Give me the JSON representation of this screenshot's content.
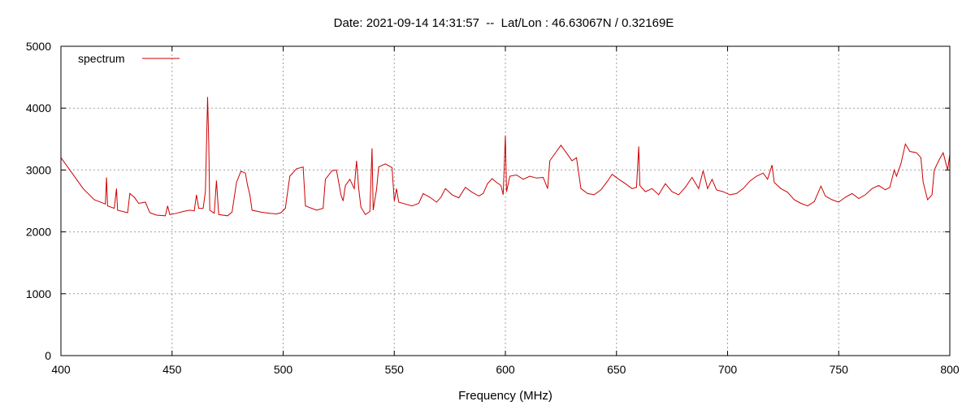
{
  "chart_data": {
    "type": "line",
    "title": "Date: 2021-09-14 14:31:57  --  Lat/Lon : 46.63067N / 0.32169E",
    "xlabel": "Frequency (MHz)",
    "ylabel": "",
    "xlim": [
      400,
      800
    ],
    "ylim": [
      0,
      5000
    ],
    "x_ticks": [
      400,
      450,
      500,
      550,
      600,
      650,
      700,
      750,
      800
    ],
    "y_ticks": [
      0,
      1000,
      2000,
      3000,
      4000,
      5000
    ],
    "grid": true,
    "legend": "top-left",
    "series": [
      {
        "name": "spectrum",
        "color": "#cc0000",
        "points": [
          [
            400,
            3200
          ],
          [
            405,
            2950
          ],
          [
            410,
            2700
          ],
          [
            415,
            2520
          ],
          [
            420,
            2450
          ],
          [
            420.5,
            2880
          ],
          [
            421,
            2420
          ],
          [
            424,
            2380
          ],
          [
            425,
            2700
          ],
          [
            425.5,
            2350
          ],
          [
            430,
            2310
          ],
          [
            431,
            2620
          ],
          [
            433,
            2560
          ],
          [
            435,
            2460
          ],
          [
            438,
            2480
          ],
          [
            440,
            2310
          ],
          [
            443,
            2270
          ],
          [
            447,
            2260
          ],
          [
            448,
            2420
          ],
          [
            449,
            2280
          ],
          [
            452,
            2300
          ],
          [
            455,
            2330
          ],
          [
            458,
            2350
          ],
          [
            460,
            2340
          ],
          [
            461,
            2600
          ],
          [
            462,
            2380
          ],
          [
            464,
            2380
          ],
          [
            465,
            2650
          ],
          [
            466,
            4180
          ],
          [
            466.5,
            3450
          ],
          [
            467,
            2350
          ],
          [
            469,
            2300
          ],
          [
            470,
            2830
          ],
          [
            471,
            2280
          ],
          [
            475,
            2260
          ],
          [
            477,
            2320
          ],
          [
            479,
            2800
          ],
          [
            481,
            2980
          ],
          [
            483,
            2950
          ],
          [
            484,
            2750
          ],
          [
            485,
            2600
          ],
          [
            486,
            2350
          ],
          [
            490,
            2320
          ],
          [
            494,
            2300
          ],
          [
            497,
            2290
          ],
          [
            499,
            2310
          ],
          [
            501,
            2380
          ],
          [
            503,
            2900
          ],
          [
            506,
            3020
          ],
          [
            509,
            3050
          ],
          [
            510,
            2420
          ],
          [
            515,
            2350
          ],
          [
            518,
            2380
          ],
          [
            519,
            2850
          ],
          [
            522,
            2990
          ],
          [
            524,
            3000
          ],
          [
            525,
            2800
          ],
          [
            526,
            2600
          ],
          [
            527,
            2500
          ],
          [
            528,
            2750
          ],
          [
            530,
            2850
          ],
          [
            532,
            2700
          ],
          [
            533,
            3150
          ],
          [
            534,
            2700
          ],
          [
            535,
            2400
          ],
          [
            537,
            2280
          ],
          [
            539,
            2330
          ],
          [
            540,
            3350
          ],
          [
            540.5,
            2350
          ],
          [
            542,
            2680
          ],
          [
            543,
            3050
          ],
          [
            546,
            3100
          ],
          [
            549,
            3040
          ],
          [
            550,
            2500
          ],
          [
            551,
            2700
          ],
          [
            552,
            2480
          ],
          [
            555,
            2450
          ],
          [
            558,
            2420
          ],
          [
            561,
            2460
          ],
          [
            563,
            2620
          ],
          [
            566,
            2560
          ],
          [
            569,
            2480
          ],
          [
            571,
            2560
          ],
          [
            573,
            2700
          ],
          [
            576,
            2600
          ],
          [
            579,
            2550
          ],
          [
            582,
            2720
          ],
          [
            585,
            2640
          ],
          [
            588,
            2580
          ],
          [
            590,
            2620
          ],
          [
            592,
            2780
          ],
          [
            594,
            2860
          ],
          [
            596,
            2800
          ],
          [
            598,
            2750
          ],
          [
            599,
            2600
          ],
          [
            600,
            3560
          ],
          [
            600.5,
            2650
          ],
          [
            602,
            2900
          ],
          [
            605,
            2920
          ],
          [
            608,
            2850
          ],
          [
            611,
            2900
          ],
          [
            614,
            2870
          ],
          [
            617,
            2880
          ],
          [
            619,
            2700
          ],
          [
            620,
            3150
          ],
          [
            623,
            3300
          ],
          [
            625,
            3400
          ],
          [
            628,
            3250
          ],
          [
            630,
            3150
          ],
          [
            632,
            3200
          ],
          [
            634,
            2700
          ],
          [
            637,
            2620
          ],
          [
            640,
            2600
          ],
          [
            643,
            2680
          ],
          [
            646,
            2820
          ],
          [
            648,
            2930
          ],
          [
            651,
            2850
          ],
          [
            654,
            2780
          ],
          [
            657,
            2700
          ],
          [
            659,
            2720
          ],
          [
            660,
            3380
          ],
          [
            660.5,
            2750
          ],
          [
            663,
            2650
          ],
          [
            666,
            2700
          ],
          [
            669,
            2600
          ],
          [
            672,
            2780
          ],
          [
            675,
            2650
          ],
          [
            678,
            2600
          ],
          [
            681,
            2720
          ],
          [
            684,
            2880
          ],
          [
            687,
            2700
          ],
          [
            689,
            2990
          ],
          [
            691,
            2700
          ],
          [
            693,
            2850
          ],
          [
            695,
            2680
          ],
          [
            698,
            2650
          ],
          [
            701,
            2600
          ],
          [
            704,
            2620
          ],
          [
            707,
            2700
          ],
          [
            710,
            2820
          ],
          [
            713,
            2900
          ],
          [
            716,
            2950
          ],
          [
            718,
            2850
          ],
          [
            720,
            3080
          ],
          [
            721,
            2800
          ],
          [
            724,
            2700
          ],
          [
            727,
            2640
          ],
          [
            730,
            2520
          ],
          [
            733,
            2460
          ],
          [
            736,
            2420
          ],
          [
            739,
            2490
          ],
          [
            742,
            2740
          ],
          [
            744,
            2580
          ],
          [
            747,
            2520
          ],
          [
            750,
            2480
          ],
          [
            753,
            2560
          ],
          [
            756,
            2620
          ],
          [
            759,
            2540
          ],
          [
            762,
            2600
          ],
          [
            765,
            2700
          ],
          [
            768,
            2750
          ],
          [
            771,
            2680
          ],
          [
            773,
            2720
          ],
          [
            775,
            3000
          ],
          [
            776,
            2900
          ],
          [
            778,
            3100
          ],
          [
            780,
            3420
          ],
          [
            782,
            3300
          ],
          [
            785,
            3280
          ],
          [
            787,
            3200
          ],
          [
            788,
            2800
          ],
          [
            790,
            2520
          ],
          [
            792,
            2600
          ],
          [
            793,
            3000
          ],
          [
            795,
            3150
          ],
          [
            797,
            3280
          ],
          [
            799,
            3000
          ],
          [
            800,
            3250
          ]
        ]
      }
    ]
  }
}
